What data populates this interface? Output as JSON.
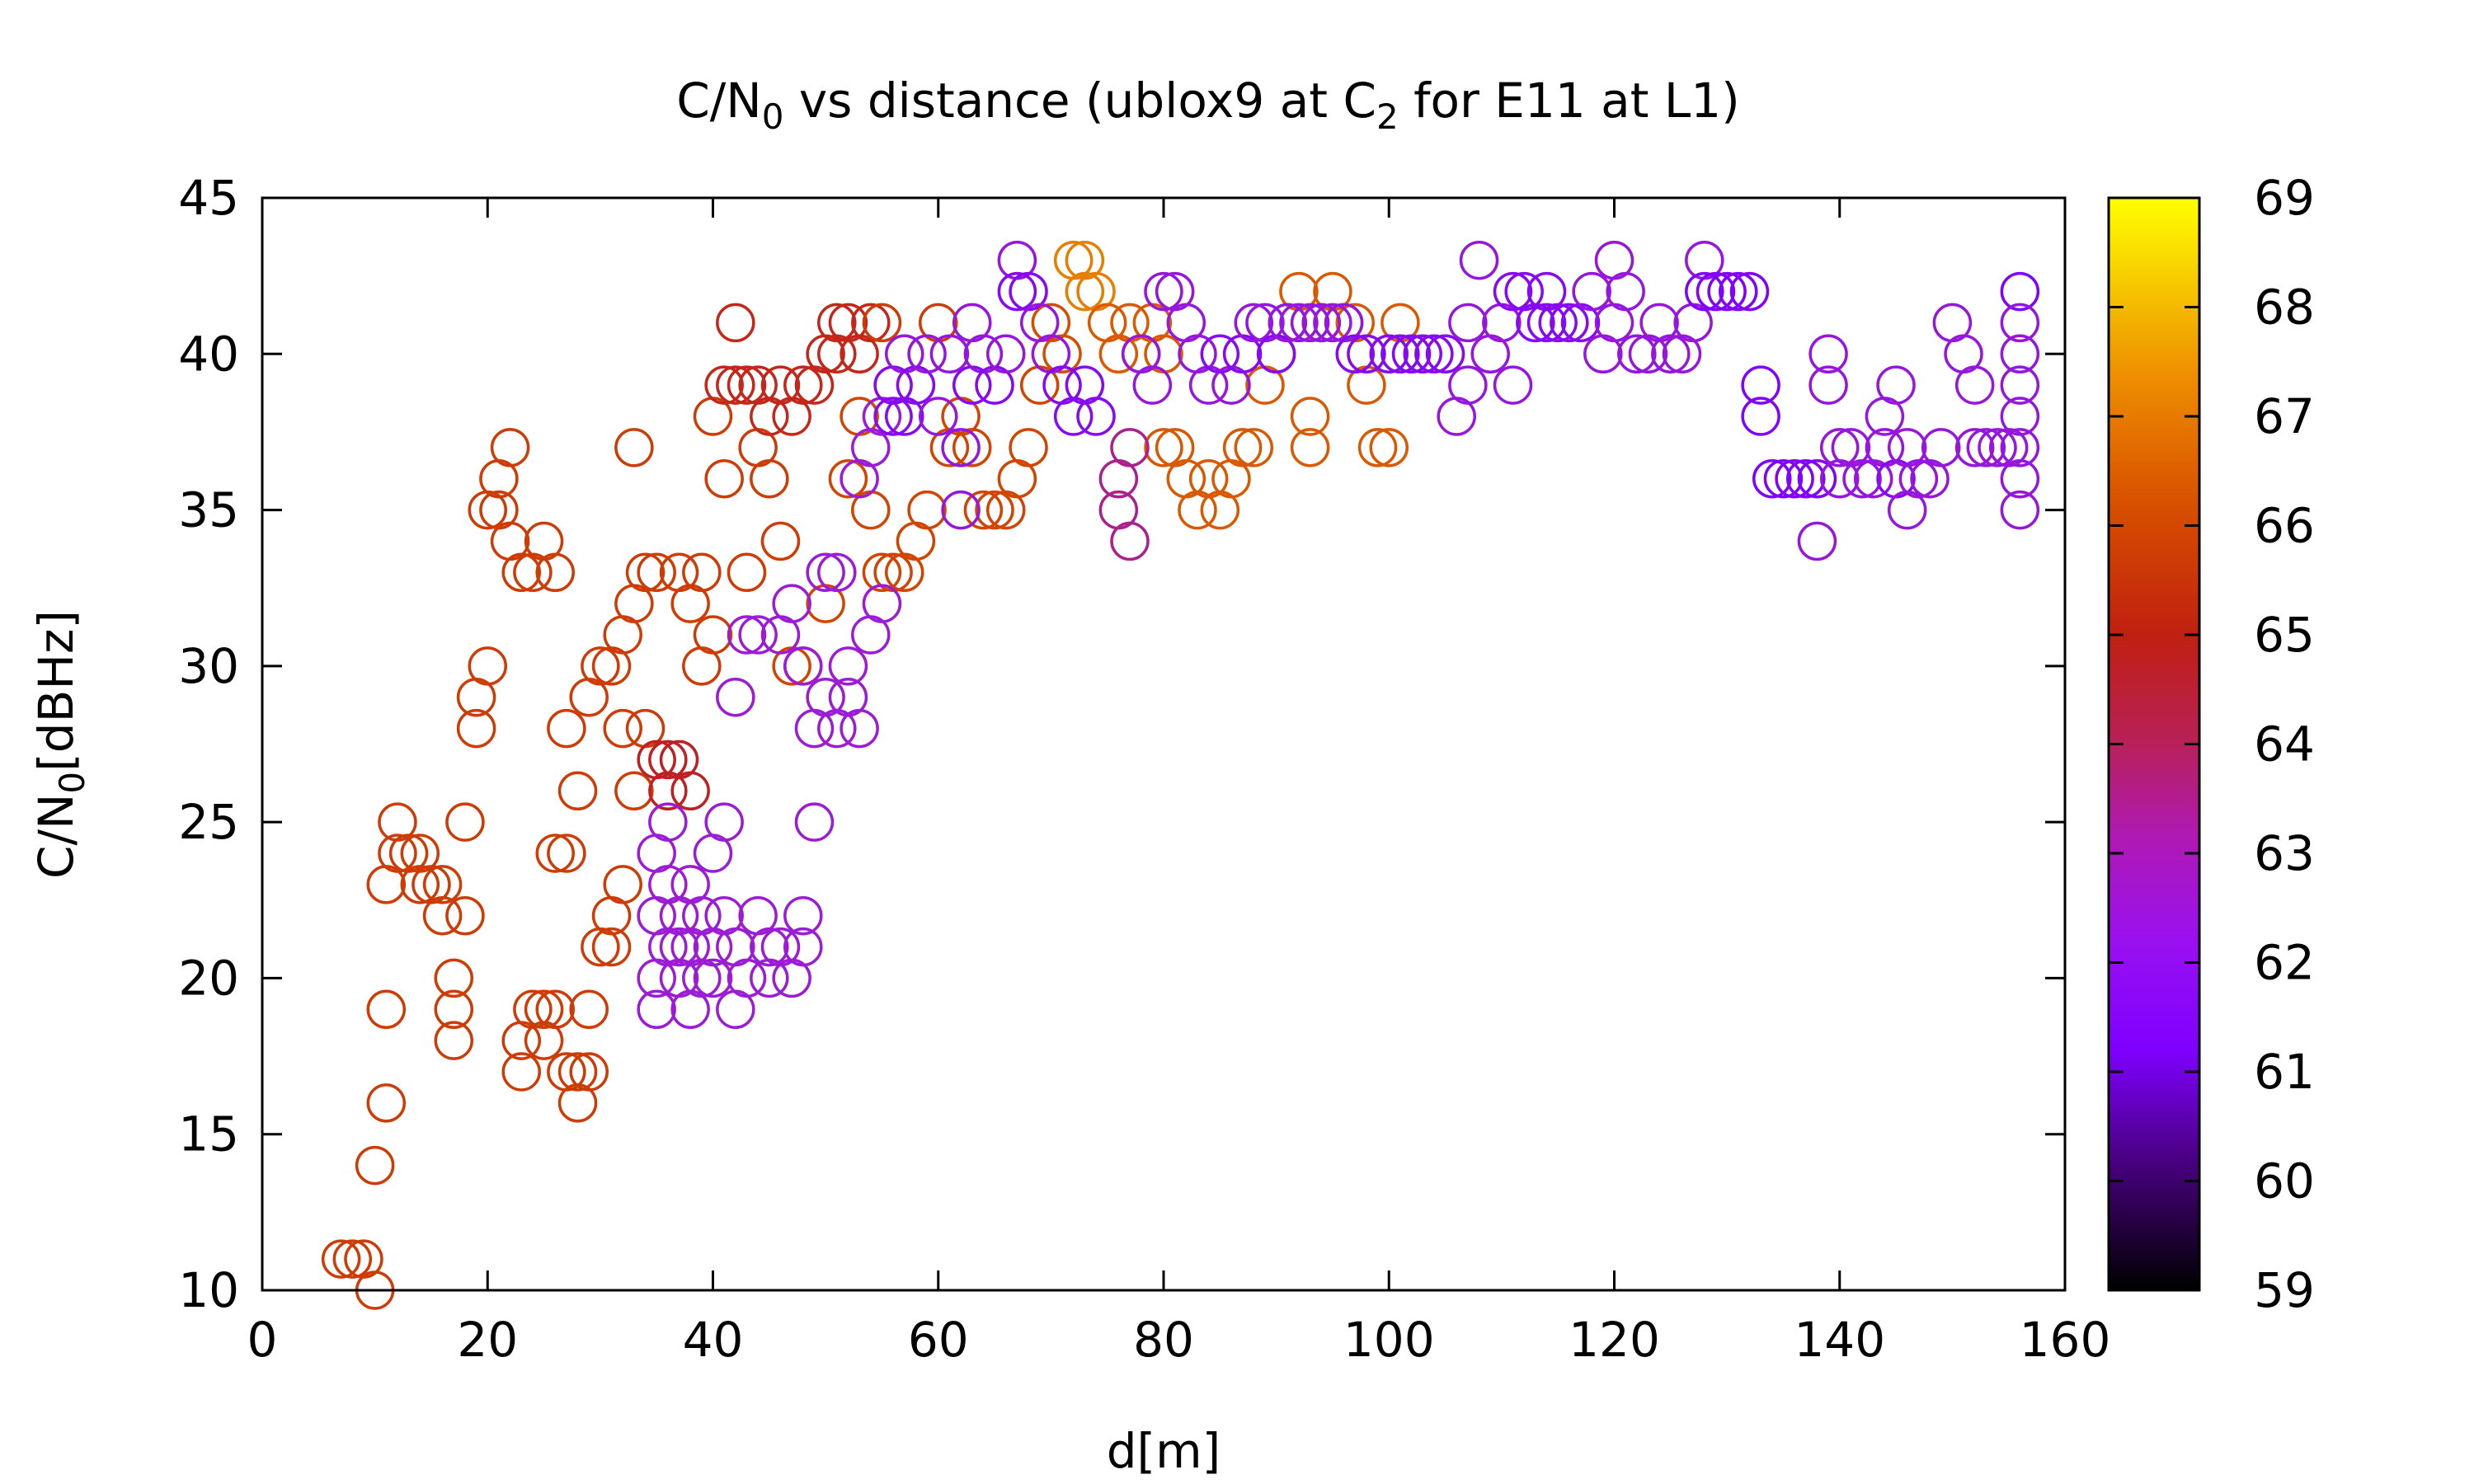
{
  "chart_data": {
    "type": "scatter",
    "title": "C/N",
    "title_subscript": "0",
    "title_rest": " vs distance (ublox9 at C",
    "title_subscript2": "2",
    "title_end": " for E11 at L1)",
    "xlabel": "d[m]",
    "ylabel": "C/N",
    "ylabel_subscript": "0",
    "ylabel_rest": "[dBHz]",
    "xlim": [
      0,
      160
    ],
    "ylim": [
      10,
      45
    ],
    "xticks": [
      "0",
      "20",
      "40",
      "60",
      "80",
      "100",
      "120",
      "140",
      "160"
    ],
    "yticks": [
      "10",
      "15",
      "20",
      "25",
      "30",
      "35",
      "40",
      "45"
    ],
    "colorbar": {
      "range": [
        59,
        69
      ],
      "ticks": [
        "59",
        "60",
        "61",
        "62",
        "63",
        "64",
        "65",
        "66",
        "67",
        "68",
        "69"
      ],
      "palette": [
        "#000000",
        "#4a0082",
        "#7f00ff",
        "#a020d0",
        "#b0207a",
        "#c02020",
        "#d04000",
        "#e06a00",
        "#f0a000",
        "#ffff00"
      ]
    },
    "marker": "open-circle",
    "points": [
      [
        7,
        11,
        65.5
      ],
      [
        8,
        11,
        65.5
      ],
      [
        9,
        11,
        65.5
      ],
      [
        10,
        10,
        65.5
      ],
      [
        10,
        14,
        65.5
      ],
      [
        11,
        16,
        65.5
      ],
      [
        11,
        19,
        65.5
      ],
      [
        11,
        23,
        65.5
      ],
      [
        12,
        25,
        65.5
      ],
      [
        12,
        24,
        65.5
      ],
      [
        13,
        24,
        65.5
      ],
      [
        14,
        24,
        65.5
      ],
      [
        14,
        23,
        65.5
      ],
      [
        15,
        23,
        65.5
      ],
      [
        16,
        22,
        65.5
      ],
      [
        16,
        23,
        65.5
      ],
      [
        17,
        20,
        65.5
      ],
      [
        17,
        18,
        65.5
      ],
      [
        17,
        19,
        65.5
      ],
      [
        18,
        22,
        65.5
      ],
      [
        18,
        25,
        65.5
      ],
      [
        19,
        28,
        65.5
      ],
      [
        19,
        29,
        65.5
      ],
      [
        20,
        30,
        65.5
      ],
      [
        20,
        35,
        65.5
      ],
      [
        21,
        36,
        65.5
      ],
      [
        21,
        35,
        65.5
      ],
      [
        22,
        37,
        65.5
      ],
      [
        22,
        34,
        65.5
      ],
      [
        23,
        33,
        65.5
      ],
      [
        23,
        17,
        65.5
      ],
      [
        23,
        18,
        65.5
      ],
      [
        24,
        19,
        65.5
      ],
      [
        24,
        33,
        65.5
      ],
      [
        25,
        34,
        65.5
      ],
      [
        25,
        18,
        65.5
      ],
      [
        25,
        19,
        65.5
      ],
      [
        26,
        24,
        65.5
      ],
      [
        26,
        19,
        65.5
      ],
      [
        26,
        33,
        65.5
      ],
      [
        27,
        17,
        65.5
      ],
      [
        27,
        24,
        65.5
      ],
      [
        27,
        28,
        65.5
      ],
      [
        28,
        16,
        65.5
      ],
      [
        28,
        17,
        65.5
      ],
      [
        28,
        26,
        65.5
      ],
      [
        29,
        29,
        65.5
      ],
      [
        29,
        17,
        65.5
      ],
      [
        29,
        19,
        65.5
      ],
      [
        30,
        21,
        65.5
      ],
      [
        30,
        30,
        65.5
      ],
      [
        31,
        21,
        65.5
      ],
      [
        31,
        22,
        65.5
      ],
      [
        31,
        30,
        65.5
      ],
      [
        32,
        23,
        65.5
      ],
      [
        32,
        28,
        65.5
      ],
      [
        32,
        31,
        65.5
      ],
      [
        33,
        37,
        65.5
      ],
      [
        33,
        32,
        65.5
      ],
      [
        33,
        26,
        65.5
      ],
      [
        34,
        33,
        65.5
      ],
      [
        34,
        28,
        65.5
      ],
      [
        35,
        27,
        64.5
      ],
      [
        35,
        33,
        65.5
      ],
      [
        36,
        27,
        64.5
      ],
      [
        36,
        26,
        64.5
      ],
      [
        37,
        33,
        65.5
      ],
      [
        37,
        27,
        64.5
      ],
      [
        38,
        32,
        65.5
      ],
      [
        38,
        26,
        64.5
      ],
      [
        39,
        30,
        65.5
      ],
      [
        39,
        33,
        65.5
      ],
      [
        40,
        31,
        65.5
      ],
      [
        40,
        38,
        65.5
      ],
      [
        41,
        36,
        65.5
      ],
      [
        41,
        39,
        64.8
      ],
      [
        42,
        41,
        64.8
      ],
      [
        42,
        39,
        64.8
      ],
      [
        43,
        39,
        64.8
      ],
      [
        43,
        33,
        65.5
      ],
      [
        44,
        37,
        65.5
      ],
      [
        44,
        39,
        64.8
      ],
      [
        45,
        38,
        64.8
      ],
      [
        45,
        36,
        65.5
      ],
      [
        46,
        34,
        65.5
      ],
      [
        46,
        39,
        64.8
      ],
      [
        47,
        38,
        64.8
      ],
      [
        47,
        30,
        65.8
      ],
      [
        48,
        39,
        64.8
      ],
      [
        48,
        30,
        65.8
      ],
      [
        49,
        39,
        64.8
      ],
      [
        50,
        40,
        64.8
      ],
      [
        50,
        32,
        65.8
      ],
      [
        51,
        40,
        64.8
      ],
      [
        51,
        41,
        64.8
      ],
      [
        52,
        41,
        64.8
      ],
      [
        52,
        36,
        65.8
      ],
      [
        53,
        40,
        64.8
      ],
      [
        53,
        38,
        65.8
      ],
      [
        54,
        41,
        64.8
      ],
      [
        54,
        35,
        65.8
      ],
      [
        55,
        41,
        65.5
      ],
      [
        55,
        33,
        65.8
      ],
      [
        56,
        33,
        65.8
      ],
      [
        57,
        33,
        65.8
      ],
      [
        58,
        34,
        65.8
      ],
      [
        59,
        35,
        65.8
      ],
      [
        60,
        41,
        65.5
      ],
      [
        61,
        37,
        65.8
      ],
      [
        62,
        38,
        65.8
      ],
      [
        63,
        37,
        65.8
      ],
      [
        64,
        35,
        65.8
      ],
      [
        65,
        35,
        65.8
      ],
      [
        66,
        35,
        65.8
      ],
      [
        67,
        36,
        65.8
      ],
      [
        68,
        37,
        65.8
      ],
      [
        69,
        39,
        65.8
      ],
      [
        70,
        41,
        66.0
      ],
      [
        71,
        40,
        66.0
      ],
      [
        72,
        43,
        67.2
      ],
      [
        73,
        43,
        67.2
      ],
      [
        73,
        42,
        67.2
      ],
      [
        74,
        42,
        67.2
      ],
      [
        75,
        41,
        66.3
      ],
      [
        76,
        40,
        66.3
      ],
      [
        77,
        41,
        66.3
      ],
      [
        78,
        40,
        66.3
      ],
      [
        79,
        41,
        66.3
      ],
      [
        80,
        40,
        66.3
      ],
      [
        80,
        37,
        66.3
      ],
      [
        81,
        37,
        66.3
      ],
      [
        82,
        36,
        66.3
      ],
      [
        83,
        35,
        66.3
      ],
      [
        84,
        36,
        66.3
      ],
      [
        85,
        35,
        66.3
      ],
      [
        86,
        36,
        66.3
      ],
      [
        87,
        37,
        66.3
      ],
      [
        88,
        37,
        66.3
      ],
      [
        89,
        39,
        66.3
      ],
      [
        90,
        40,
        66.3
      ],
      [
        91,
        41,
        66.3
      ],
      [
        92,
        42,
        66.3
      ],
      [
        93,
        38,
        66.3
      ],
      [
        93,
        37,
        66.3
      ],
      [
        94,
        41,
        66.3
      ],
      [
        95,
        42,
        66.3
      ],
      [
        96,
        41,
        66.3
      ],
      [
        97,
        41,
        66.3
      ],
      [
        98,
        39,
        66.3
      ],
      [
        99,
        37,
        66.3
      ],
      [
        100,
        37,
        66.3
      ],
      [
        101,
        41,
        66.3
      ],
      [
        35,
        20,
        62.2
      ],
      [
        35,
        22,
        62.2
      ],
      [
        35,
        24,
        62.2
      ],
      [
        35,
        19,
        62.2
      ],
      [
        36,
        21,
        62.2
      ],
      [
        36,
        23,
        62.2
      ],
      [
        36,
        25,
        62.2
      ],
      [
        37,
        21,
        62.2
      ],
      [
        37,
        20,
        62.2
      ],
      [
        37,
        22,
        62.2
      ],
      [
        38,
        19,
        62.2
      ],
      [
        38,
        21,
        62.2
      ],
      [
        38,
        23,
        62.2
      ],
      [
        39,
        20,
        62.2
      ],
      [
        39,
        22,
        62.2
      ],
      [
        40,
        21,
        62.2
      ],
      [
        40,
        24,
        62.2
      ],
      [
        40,
        20,
        62.2
      ],
      [
        41,
        25,
        62.2
      ],
      [
        41,
        22,
        62.2
      ],
      [
        42,
        19,
        62.2
      ],
      [
        42,
        21,
        62.2
      ],
      [
        42,
        29,
        62.2
      ],
      [
        43,
        20,
        62.2
      ],
      [
        43,
        31,
        62.2
      ],
      [
        44,
        22,
        62.2
      ],
      [
        44,
        31,
        62.2
      ],
      [
        45,
        21,
        62.2
      ],
      [
        45,
        20,
        62.2
      ],
      [
        46,
        21,
        62.2
      ],
      [
        46,
        31,
        62.2
      ],
      [
        47,
        20,
        62.2
      ],
      [
        47,
        32,
        62.2
      ],
      [
        48,
        21,
        62.2
      ],
      [
        48,
        22,
        62.2
      ],
      [
        48,
        30,
        62.2
      ],
      [
        49,
        25,
        62.2
      ],
      [
        49,
        28,
        62.2
      ],
      [
        50,
        29,
        62.2
      ],
      [
        50,
        33,
        62.2
      ],
      [
        51,
        28,
        62.2
      ],
      [
        51,
        33,
        62.2
      ],
      [
        52,
        29,
        62.2
      ],
      [
        52,
        30,
        62.2
      ],
      [
        53,
        28,
        62.2
      ],
      [
        53,
        36,
        62.2
      ],
      [
        54,
        31,
        62.2
      ],
      [
        54,
        37,
        62.2
      ],
      [
        55,
        32,
        62.2
      ],
      [
        55,
        38,
        62.2
      ],
      [
        56,
        39,
        61.5
      ],
      [
        56,
        38,
        61.5
      ],
      [
        57,
        40,
        62.0
      ],
      [
        57,
        38,
        61.5
      ],
      [
        58,
        39,
        61.5
      ],
      [
        59,
        40,
        62.0
      ],
      [
        60,
        38,
        62.0
      ],
      [
        61,
        40,
        62.0
      ],
      [
        62,
        35,
        62.0
      ],
      [
        62,
        37,
        62.0
      ],
      [
        63,
        39,
        61.5
      ],
      [
        63,
        41,
        62.0
      ],
      [
        64,
        40,
        62.0
      ],
      [
        65,
        39,
        61.5
      ],
      [
        66,
        40,
        62.0
      ],
      [
        67,
        43,
        62.0
      ],
      [
        67,
        42,
        61.5
      ],
      [
        68,
        42,
        61.5
      ],
      [
        69,
        41,
        62.0
      ],
      [
        70,
        40,
        62.0
      ],
      [
        71,
        39,
        61.5
      ],
      [
        72,
        38,
        61.5
      ],
      [
        73,
        39,
        61.5
      ],
      [
        74,
        38,
        61.5
      ],
      [
        76,
        36,
        63.2
      ],
      [
        76,
        35,
        63.2
      ],
      [
        77,
        34,
        63.2
      ],
      [
        77,
        37,
        63.2
      ],
      [
        78,
        40,
        62.0
      ],
      [
        79,
        39,
        62.0
      ],
      [
        80,
        42,
        62.0
      ],
      [
        81,
        42,
        62.0
      ],
      [
        82,
        41,
        62.0
      ],
      [
        83,
        40,
        62.0
      ],
      [
        84,
        39,
        62.0
      ],
      [
        85,
        40,
        61.5
      ],
      [
        86,
        39,
        62.0
      ],
      [
        87,
        40,
        61.5
      ],
      [
        88,
        41,
        62.0
      ],
      [
        89,
        41,
        62.0
      ],
      [
        90,
        40,
        61.5
      ],
      [
        91,
        41,
        62.0
      ],
      [
        92,
        41,
        62.0
      ],
      [
        93,
        41,
        62.0
      ],
      [
        94,
        41,
        62.0
      ],
      [
        95,
        41,
        62.0
      ],
      [
        96,
        41,
        62.0
      ],
      [
        97,
        40,
        61.5
      ],
      [
        98,
        40,
        61.5
      ],
      [
        100,
        40,
        61.5
      ],
      [
        101,
        40,
        61.5
      ],
      [
        102,
        40,
        61.5
      ],
      [
        103,
        40,
        61.5
      ],
      [
        104,
        40,
        61.5
      ],
      [
        105,
        40,
        61.5
      ],
      [
        106,
        38,
        62.0
      ],
      [
        107,
        41,
        62.0
      ],
      [
        107,
        39,
        62.0
      ],
      [
        108,
        43,
        62.0
      ],
      [
        109,
        40,
        62.0
      ],
      [
        110,
        41,
        62.0
      ],
      [
        111,
        39,
        62.0
      ],
      [
        111,
        42,
        61.5
      ],
      [
        112,
        42,
        61.5
      ],
      [
        113,
        41,
        61.5
      ],
      [
        114,
        42,
        61.5
      ],
      [
        114,
        41,
        61.5
      ],
      [
        115,
        41,
        61.5
      ],
      [
        116,
        41,
        61.5
      ],
      [
        117,
        41,
        61.5
      ],
      [
        118,
        42,
        62.0
      ],
      [
        119,
        40,
        62.0
      ],
      [
        120,
        43,
        62.0
      ],
      [
        120,
        41,
        62.0
      ],
      [
        121,
        42,
        62.0
      ],
      [
        122,
        40,
        62.0
      ],
      [
        123,
        40,
        62.0
      ],
      [
        124,
        41,
        62.0
      ],
      [
        125,
        40,
        62.0
      ],
      [
        126,
        40,
        62.0
      ],
      [
        127,
        41,
        62.0
      ],
      [
        128,
        43,
        62.0
      ],
      [
        128,
        42,
        61.3
      ],
      [
        129,
        42,
        61.3
      ],
      [
        130,
        42,
        61.3
      ],
      [
        131,
        42,
        61.3
      ],
      [
        132,
        42,
        61.3
      ],
      [
        133,
        39,
        61.3
      ],
      [
        133,
        38,
        61.3
      ],
      [
        134,
        36,
        61.3
      ],
      [
        135,
        36,
        61.3
      ],
      [
        136,
        36,
        61.3
      ],
      [
        137,
        36,
        61.3
      ],
      [
        138,
        34,
        62.0
      ],
      [
        138,
        36,
        61.3
      ],
      [
        139,
        40,
        62.0
      ],
      [
        139,
        39,
        62.0
      ],
      [
        140,
        37,
        62.0
      ],
      [
        140,
        36,
        62.0
      ],
      [
        141,
        37,
        62.0
      ],
      [
        142,
        36,
        62.0
      ],
      [
        143,
        36,
        62.0
      ],
      [
        144,
        37,
        62.0
      ],
      [
        144,
        38,
        62.0
      ],
      [
        145,
        39,
        62.0
      ],
      [
        145,
        36,
        61.5
      ],
      [
        146,
        35,
        62.0
      ],
      [
        146,
        37,
        62.0
      ],
      [
        147,
        36,
        62.0
      ],
      [
        148,
        36,
        62.0
      ],
      [
        149,
        37,
        62.0
      ],
      [
        150,
        41,
        62.0
      ],
      [
        151,
        40,
        62.0
      ],
      [
        152,
        39,
        62.0
      ],
      [
        152,
        37,
        62.0
      ],
      [
        153,
        37,
        62.0
      ],
      [
        154,
        37,
        62.0
      ],
      [
        155,
        37,
        62.0
      ],
      [
        156,
        42,
        61.3
      ],
      [
        156,
        41,
        62.0
      ],
      [
        156,
        40,
        62.0
      ],
      [
        156,
        39,
        62.0
      ],
      [
        156,
        38,
        62.0
      ],
      [
        156,
        36,
        62.0
      ],
      [
        156,
        35,
        62.0
      ],
      [
        156,
        37,
        62.0
      ]
    ]
  }
}
